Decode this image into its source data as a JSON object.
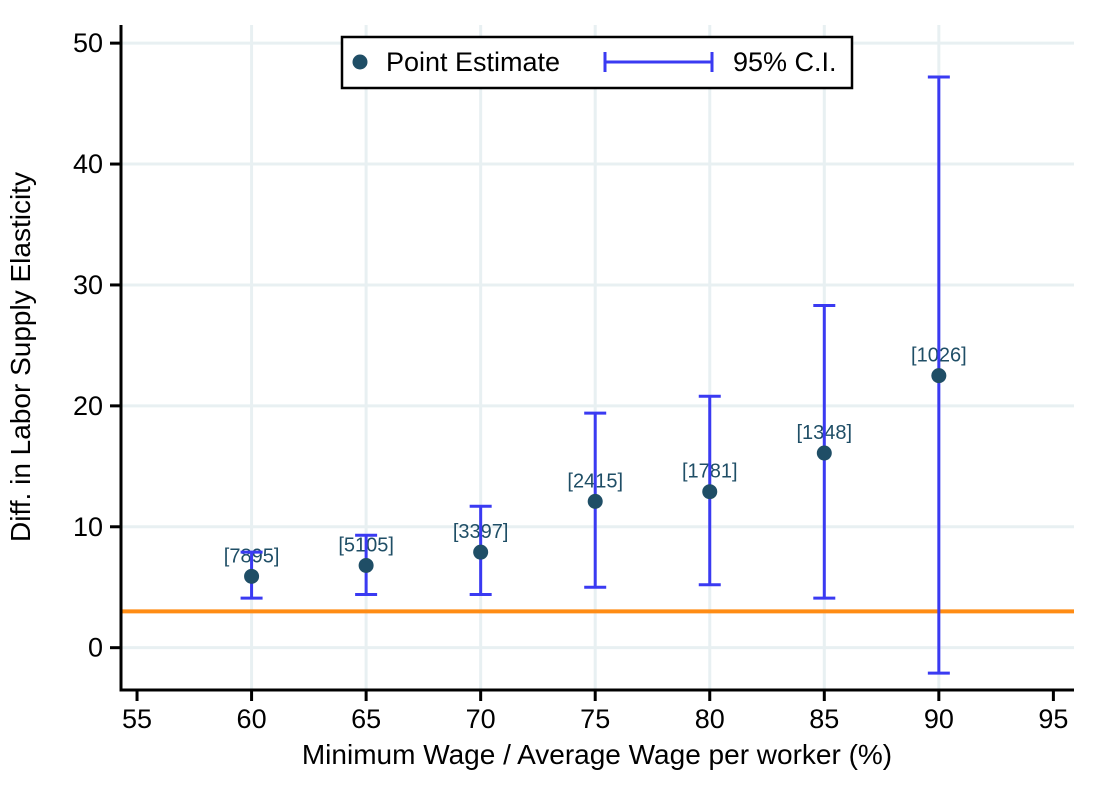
{
  "chart_data": {
    "type": "scatter",
    "title": "",
    "xlabel": "Minimum Wage / Average Wage per worker (%)",
    "ylabel": "Diff. in Labor Supply Elasticity",
    "x_ticks": [
      55,
      60,
      65,
      70,
      75,
      80,
      85,
      90,
      95
    ],
    "y_ticks": [
      0,
      10,
      20,
      30,
      40,
      50
    ],
    "x_grid_ticks": [
      60,
      65,
      70,
      75,
      80,
      85,
      90
    ],
    "xlim": [
      54.3,
      95.9
    ],
    "ylim": [
      -3.5,
      51.5
    ],
    "grid": true,
    "legend": {
      "position": "top-center",
      "entries": [
        "Point Estimate",
        "95% C.I."
      ]
    },
    "reference_line": {
      "y": 3
    },
    "series": [
      {
        "name": "Point Estimate",
        "points": [
          {
            "x": 60,
            "y": 5.9,
            "ci_low": 4.1,
            "ci_high": 7.9,
            "label": "[7895]"
          },
          {
            "x": 65,
            "y": 6.8,
            "ci_low": 4.4,
            "ci_high": 9.3,
            "label": "[5105]"
          },
          {
            "x": 70,
            "y": 7.9,
            "ci_low": 4.4,
            "ci_high": 11.7,
            "label": "[3397]"
          },
          {
            "x": 75,
            "y": 12.1,
            "ci_low": 5.0,
            "ci_high": 19.4,
            "label": "[2415]"
          },
          {
            "x": 80,
            "y": 12.9,
            "ci_low": 5.2,
            "ci_high": 20.8,
            "label": "[1781]"
          },
          {
            "x": 85,
            "y": 16.1,
            "ci_low": 4.1,
            "ci_high": 28.3,
            "label": "[1348]"
          },
          {
            "x": 90,
            "y": 22.5,
            "ci_low": -2.1,
            "ci_high": 47.2,
            "label": "[1026]"
          }
        ]
      }
    ]
  },
  "colors": {
    "marker_navy": "#1f4e66",
    "ci_blue": "#3a3af2",
    "reference_orange": "#ff8c14",
    "gridline": "#e8f0f2",
    "axis": "#000000",
    "background": "#ffffff"
  }
}
